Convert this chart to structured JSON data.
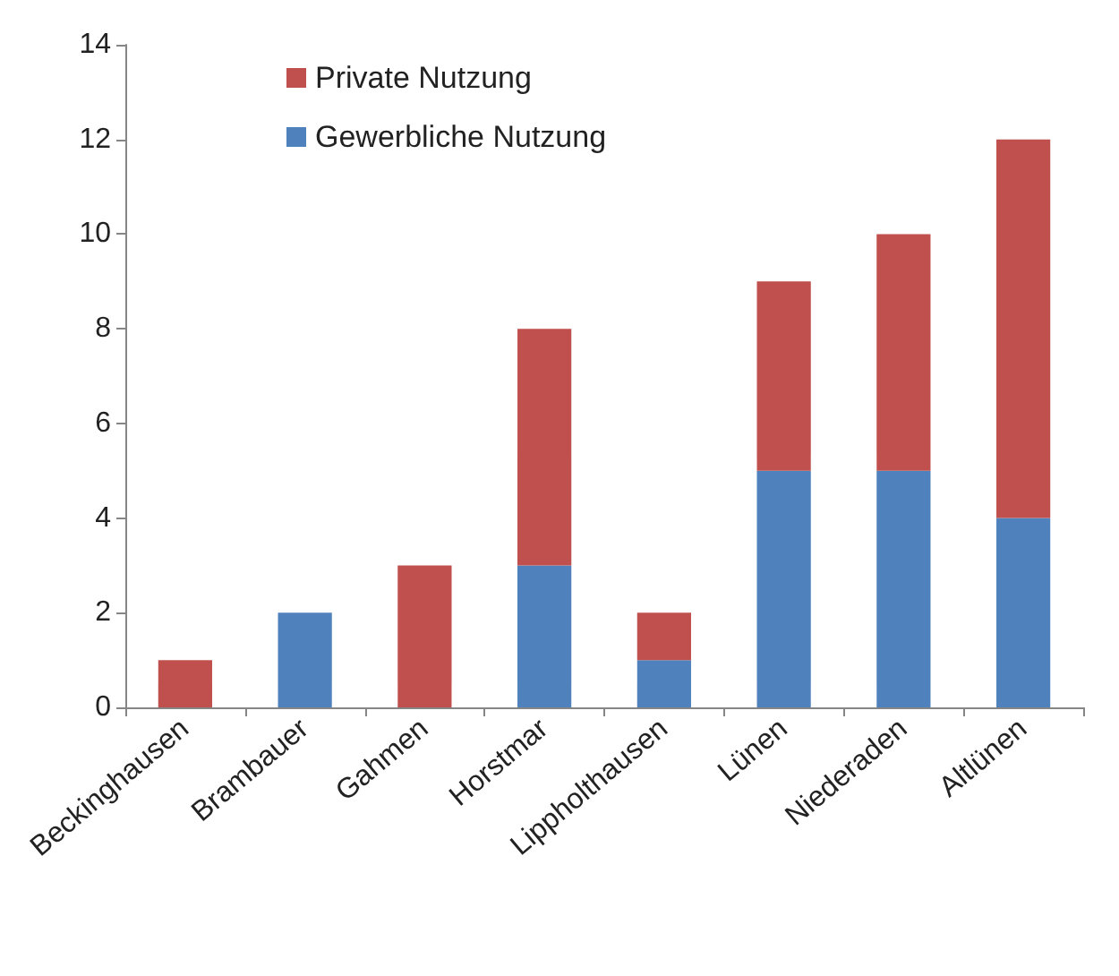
{
  "chart_data": {
    "type": "bar",
    "stacked": true,
    "categories": [
      "Beckinghausen",
      "Brambauer",
      "Gahmen",
      "Horstmar",
      "Lippholthausen",
      "Lünen",
      "Niederaden",
      "Altlünen"
    ],
    "series": [
      {
        "name": "Gewerbliche Nutzung",
        "color": "#4f81bd",
        "values": [
          0,
          2,
          0,
          3,
          1,
          5,
          5,
          4
        ]
      },
      {
        "name": "Private Nutzung",
        "color": "#c0504d",
        "values": [
          1,
          0,
          3,
          5,
          1,
          4,
          5,
          8
        ]
      }
    ],
    "ylim": [
      0,
      14
    ],
    "yticks": [
      0,
      2,
      4,
      6,
      8,
      10,
      12,
      14
    ],
    "grid": false,
    "legend": "top left"
  }
}
